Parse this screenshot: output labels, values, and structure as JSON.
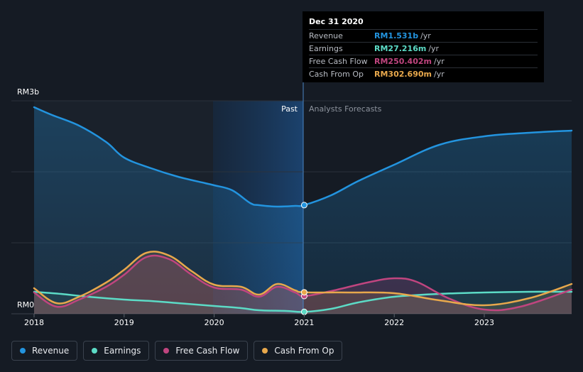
{
  "chart_data": {
    "type": "area",
    "currency_axis": {
      "top_label": "RM3b",
      "bottom_label": "RM0",
      "ylim": [
        0,
        3.0
      ],
      "unit": "RM b"
    },
    "x_ticks": [
      "2018",
      "2019",
      "2020",
      "2021",
      "2022",
      "2023"
    ],
    "xlim": [
      2018.0,
      2023.97
    ],
    "divider_x": 2021.0,
    "region_labels": {
      "past": "Past",
      "forecast": "Analysts Forecasts"
    },
    "grid": true,
    "series": [
      {
        "name": "Revenue",
        "color": "#2394df",
        "x": [
          2018.0,
          2018.2,
          2018.5,
          2018.8,
          2019.0,
          2019.3,
          2019.6,
          2019.9,
          2020.0,
          2020.2,
          2020.4,
          2020.5,
          2020.7,
          2020.9,
          2021.0,
          2021.3,
          2021.6,
          2022.0,
          2022.5,
          2023.0,
          2023.5,
          2023.97
        ],
        "y": [
          2.91,
          2.8,
          2.65,
          2.42,
          2.2,
          2.05,
          1.93,
          1.84,
          1.81,
          1.74,
          1.56,
          1.53,
          1.51,
          1.52,
          1.531,
          1.67,
          1.87,
          2.1,
          2.38,
          2.5,
          2.55,
          2.58
        ]
      },
      {
        "name": "Earnings",
        "color": "#5cdbc6",
        "x": [
          2018.0,
          2018.3,
          2018.6,
          2019.0,
          2019.3,
          2019.6,
          2020.0,
          2020.3,
          2020.5,
          2020.8,
          2021.0,
          2021.3,
          2021.6,
          2022.0,
          2022.5,
          2023.0,
          2023.5,
          2023.97
        ],
        "y": [
          0.31,
          0.28,
          0.24,
          0.2,
          0.18,
          0.15,
          0.11,
          0.08,
          0.05,
          0.04,
          0.027,
          0.07,
          0.16,
          0.24,
          0.28,
          0.3,
          0.31,
          0.31
        ]
      },
      {
        "name": "Free Cash Flow",
        "color": "#c0457f",
        "x": [
          2018.0,
          2018.25,
          2018.5,
          2018.8,
          2019.0,
          2019.25,
          2019.5,
          2019.75,
          2020.0,
          2020.3,
          2020.5,
          2020.7,
          2020.9,
          2021.0,
          2021.3,
          2021.7,
          2022.0,
          2022.25,
          2022.6,
          2023.0,
          2023.4,
          2023.97
        ],
        "y": [
          0.3,
          0.1,
          0.2,
          0.38,
          0.55,
          0.8,
          0.77,
          0.55,
          0.37,
          0.34,
          0.24,
          0.38,
          0.3,
          0.25,
          0.32,
          0.44,
          0.5,
          0.45,
          0.22,
          0.06,
          0.1,
          0.34
        ]
      },
      {
        "name": "Cash From Op",
        "color": "#e8a84c",
        "x": [
          2018.0,
          2018.25,
          2018.5,
          2018.8,
          2019.0,
          2019.25,
          2019.5,
          2019.75,
          2020.0,
          2020.3,
          2020.5,
          2020.7,
          2020.9,
          2021.0,
          2021.5,
          2022.0,
          2022.5,
          2023.0,
          2023.5,
          2023.97
        ],
        "y": [
          0.36,
          0.15,
          0.24,
          0.44,
          0.62,
          0.86,
          0.82,
          0.6,
          0.41,
          0.38,
          0.27,
          0.42,
          0.33,
          0.303,
          0.3,
          0.29,
          0.19,
          0.12,
          0.22,
          0.42
        ]
      }
    ],
    "highlight_x": 2021.0
  },
  "tooltip": {
    "date": "Dec 31 2020",
    "rows": [
      {
        "label": "Revenue",
        "value": "RM1.531b",
        "unit": "/yr",
        "color": "#2394df"
      },
      {
        "label": "Earnings",
        "value": "RM27.216m",
        "unit": "/yr",
        "color": "#5cdbc6"
      },
      {
        "label": "Free Cash Flow",
        "value": "RM250.402m",
        "unit": "/yr",
        "color": "#c0457f"
      },
      {
        "label": "Cash From Op",
        "value": "RM302.690m",
        "unit": "/yr",
        "color": "#e8a84c"
      }
    ]
  },
  "legend": [
    {
      "label": "Revenue",
      "color": "#2394df"
    },
    {
      "label": "Earnings",
      "color": "#5cdbc6"
    },
    {
      "label": "Free Cash Flow",
      "color": "#c0457f"
    },
    {
      "label": "Cash From Op",
      "color": "#e8a84c"
    }
  ]
}
